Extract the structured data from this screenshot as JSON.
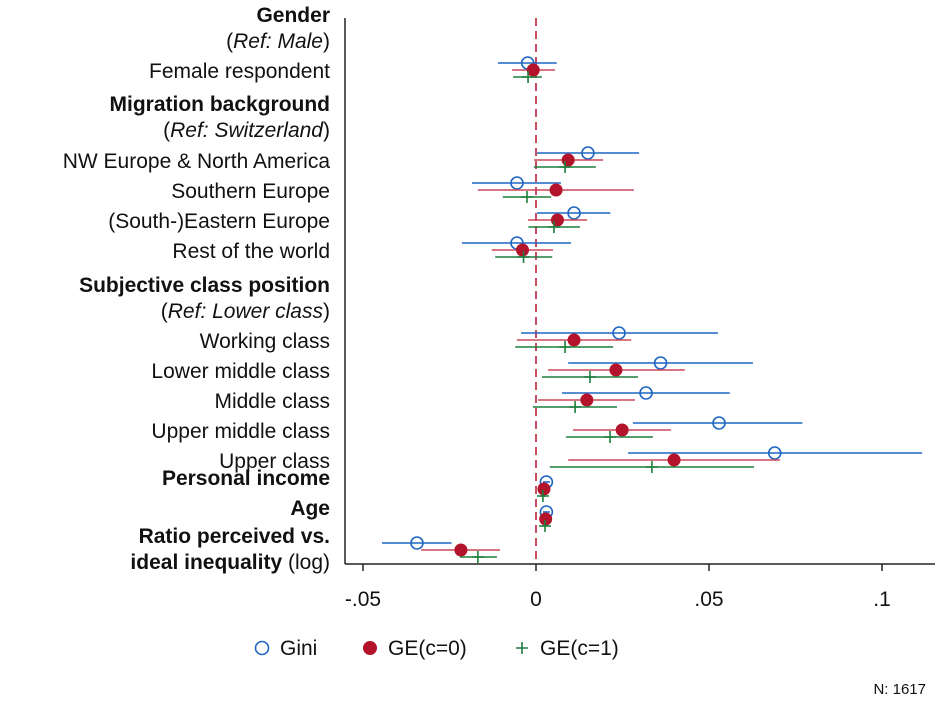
{
  "chart_data": {
    "type": "scatter",
    "subtype": "coefficient-plot",
    "xlim": [
      -0.06,
      0.11
    ],
    "x_ticks": [
      -0.05,
      0,
      0.05,
      0.1
    ],
    "x_tick_labels": [
      "-.05",
      "0",
      ".05",
      ".1"
    ],
    "reference_line": 0,
    "legend": {
      "placement": "bottom",
      "entries": [
        "Gini",
        "GE(c=0)",
        "GE(c=1)"
      ]
    },
    "note": "N: 1617",
    "colors": {
      "Gini": "#1f66c2",
      "GE(c=0)": "#b3142c",
      "GE(c=1)": "#1d7d3b",
      "ci_GE0": "#c9485a",
      "refline": "#b3142c"
    },
    "labels": [
      {
        "bold": "Gender"
      },
      {
        "prefix": "(",
        "italic": "Ref: Male",
        "suffix": ")"
      },
      {
        "text": "Female respondent",
        "row": 0
      },
      {
        "bold": "Migration background"
      },
      {
        "prefix": "(",
        "italic": "Ref: Switzerland",
        "suffix": ")"
      },
      {
        "text": "NW Europe & North America",
        "row": 1
      },
      {
        "text": "Southern Europe",
        "row": 2
      },
      {
        "text": "(South-)Eastern Europe",
        "row": 3
      },
      {
        "text": "Rest of the world",
        "row": 4
      },
      {
        "bold": "Subjective class position"
      },
      {
        "prefix": "(",
        "italic": "Ref: Lower class",
        "suffix": ")"
      },
      {
        "text": "Working class",
        "row": 5
      },
      {
        "text": "Lower middle class",
        "row": 6
      },
      {
        "text": "Middle class",
        "row": 7
      },
      {
        "text": "Upper middle class",
        "row": 8
      },
      {
        "text": "Upper class",
        "row": 9
      },
      {
        "bold": "Personal income",
        "row": 10
      },
      {
        "bold": "Age",
        "row": 11
      },
      {
        "bold": "Ratio perceived vs.",
        "row": 12
      },
      {
        "bold": "ideal inequality",
        "suffix": " (log)"
      }
    ],
    "series": [
      {
        "name": "Gini",
        "points": [
          [
            -0.0024,
            -0.011,
            0.006
          ],
          [
            0.015,
            0.0003,
            0.0298
          ],
          [
            -0.0055,
            -0.0185,
            0.0072
          ],
          [
            0.011,
            0.0003,
            0.0215
          ],
          [
            -0.0055,
            -0.0214,
            0.0101
          ],
          [
            0.024,
            -0.0043,
            0.0526
          ],
          [
            0.036,
            0.0093,
            0.0627
          ],
          [
            0.0318,
            0.0075,
            0.056
          ],
          [
            0.0529,
            0.028,
            0.077
          ],
          [
            0.069,
            0.0266,
            0.1116
          ],
          [
            0.003,
            0.002,
            0.004
          ],
          [
            0.003,
            0.002,
            0.004
          ],
          [
            -0.0344,
            -0.0445,
            -0.0244
          ]
        ]
      },
      {
        "name": "GE(c=0)",
        "points": [
          [
            -0.0008,
            -0.0069,
            0.0055
          ],
          [
            0.0093,
            -0.0006,
            0.0194
          ],
          [
            0.0058,
            -0.0168,
            0.0283
          ],
          [
            0.0062,
            -0.0023,
            0.0148
          ],
          [
            -0.0039,
            -0.0128,
            0.0049
          ],
          [
            0.011,
            -0.0055,
            0.0275
          ],
          [
            0.0231,
            0.0035,
            0.043
          ],
          [
            0.0147,
            0.0006,
            0.0286
          ],
          [
            0.0249,
            0.0107,
            0.039
          ],
          [
            0.0399,
            0.0093,
            0.0705
          ],
          [
            0.0023,
            0.0015,
            0.0031
          ],
          [
            0.0028,
            0.002,
            0.0036
          ],
          [
            -0.0217,
            -0.0332,
            -0.0104
          ]
        ]
      },
      {
        "name": "GE(c=1)",
        "points": [
          [
            -0.0023,
            -0.0066,
            0.0017
          ],
          [
            0.0084,
            -0.0006,
            0.0173
          ],
          [
            -0.0026,
            -0.0096,
            0.0044
          ],
          [
            0.0052,
            -0.0022,
            0.0127
          ],
          [
            -0.0036,
            -0.0118,
            0.0047
          ],
          [
            0.0084,
            -0.006,
            0.0223
          ],
          [
            0.0156,
            0.0017,
            0.0295
          ],
          [
            0.0113,
            -0.0009,
            0.0234
          ],
          [
            0.0214,
            0.0087,
            0.0338
          ],
          [
            0.0335,
            0.004,
            0.063
          ],
          [
            0.002,
            0.0012,
            0.0028
          ],
          [
            0.0026,
            0.0018,
            0.0034
          ],
          [
            -0.0168,
            -0.022,
            -0.0113
          ]
        ]
      }
    ],
    "point_format": "[estimate, ci_low, ci_high]"
  }
}
